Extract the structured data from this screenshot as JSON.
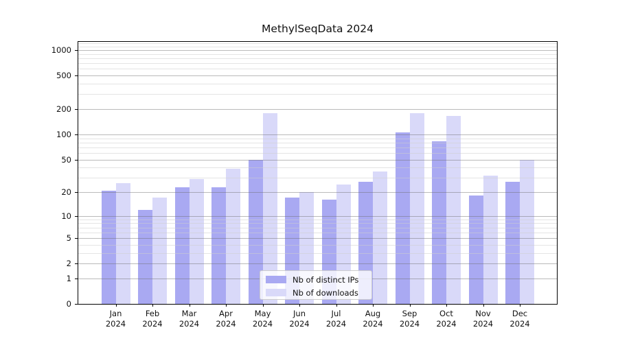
{
  "chart_data": {
    "type": "bar",
    "title": "MethylSeqData 2024",
    "x_year": "2024",
    "categories": [
      "Jan",
      "Feb",
      "Mar",
      "Apr",
      "May",
      "Jun",
      "Jul",
      "Aug",
      "Sep",
      "Oct",
      "Nov",
      "Dec"
    ],
    "series": [
      {
        "name": "Nb of distinct IPs",
        "color": "#a9a9f2",
        "values": [
          21,
          12,
          23,
          23,
          50,
          17,
          16,
          27,
          105,
          82,
          18,
          27
        ]
      },
      {
        "name": "Nb of downloads",
        "color": "#d9d9f9",
        "values": [
          26,
          17,
          29,
          39,
          180,
          20,
          25,
          36,
          180,
          165,
          32,
          50
        ]
      }
    ],
    "yscale": "log1p",
    "ylim": [
      0,
      1250
    ],
    "yticks": [
      0,
      1,
      2,
      5,
      10,
      20,
      50,
      100,
      200,
      500,
      1000
    ],
    "yminor_ticks": [
      3,
      4,
      6,
      7,
      8,
      9,
      30,
      40,
      60,
      70,
      80,
      90,
      300,
      400,
      600,
      700,
      800,
      900,
      1100,
      1200
    ],
    "grid": "major and minor, drawn over bars",
    "legend_position": "lower center",
    "colors": {
      "major_grid": "#b0b0b0",
      "minor_grid": "#e6e6e6",
      "spine": "#000000",
      "text": "#111111",
      "legend_border": "#cccccc"
    }
  }
}
